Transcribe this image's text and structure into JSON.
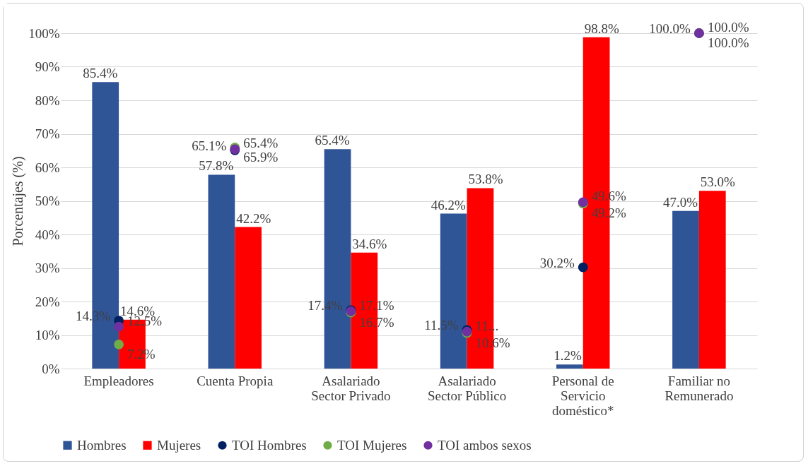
{
  "chart_data": {
    "type": "bar",
    "ylabel": "Porcentajes (%)",
    "categories": [
      "Empleadores",
      "Cuenta Propia",
      "Asalariado Sector Privado",
      "Asalariado Sector Público",
      "Personal de Servicio doméstico*",
      "Familiar no Remunerado"
    ],
    "series": [
      {
        "name": "Hombres",
        "type": "bar",
        "color": "#2f5597",
        "values": [
          85.4,
          57.8,
          65.4,
          46.2,
          1.2,
          47.0
        ],
        "value_labels": [
          "85.4%",
          "57.8%",
          "65.4%",
          "46.2%",
          "1.2%",
          "47.0%"
        ]
      },
      {
        "name": "Mujeres",
        "type": "bar",
        "color": "#ff0000",
        "values": [
          14.6,
          42.2,
          34.6,
          53.8,
          98.8,
          53.0
        ],
        "value_labels": [
          "14.6%",
          "42.2%",
          "34.6%",
          "53.8%",
          "98.8%",
          "53.0%"
        ]
      },
      {
        "name": "TOI Hombres",
        "type": "scatter",
        "color": "#002060",
        "values": [
          14.3,
          65.1,
          17.4,
          11.5,
          30.2,
          100.0
        ],
        "value_labels": [
          "14.3%",
          "65.1%",
          "17.4%",
          "11.5%",
          "30.2%",
          "100.0%"
        ]
      },
      {
        "name": "TOI Mujeres",
        "type": "scatter",
        "color": "#70ad47",
        "values": [
          7.2,
          65.9,
          16.7,
          10.6,
          49.2,
          100.0
        ],
        "value_labels": [
          "7.2%",
          "65.9%",
          "16.7%",
          "10.6%",
          "49.2%",
          "100.0%"
        ]
      },
      {
        "name": "TOI ambos sexos",
        "type": "scatter",
        "color": "#7030a0",
        "values": [
          12.5,
          65.4,
          17.1,
          11.0,
          49.6,
          100.0
        ],
        "value_labels": [
          "12.5%",
          "65.4%",
          "17.1%",
          "11...",
          "49.6%",
          "100.0%"
        ]
      }
    ],
    "ylim": [
      0,
      100
    ],
    "yticks": [
      {
        "value": 0,
        "label": "0%"
      },
      {
        "value": 10,
        "label": "10%"
      },
      {
        "value": 20,
        "label": "20%"
      },
      {
        "value": 30,
        "label": "30%"
      },
      {
        "value": 40,
        "label": "40%"
      },
      {
        "value": 50,
        "label": "50%"
      },
      {
        "value": 60,
        "label": "60%"
      },
      {
        "value": 70,
        "label": "70%"
      },
      {
        "value": 80,
        "label": "80%"
      },
      {
        "value": 90,
        "label": "90%"
      },
      {
        "value": 100,
        "label": "100%"
      }
    ],
    "grid": "y",
    "legend": "bottom",
    "marker": "circle"
  }
}
